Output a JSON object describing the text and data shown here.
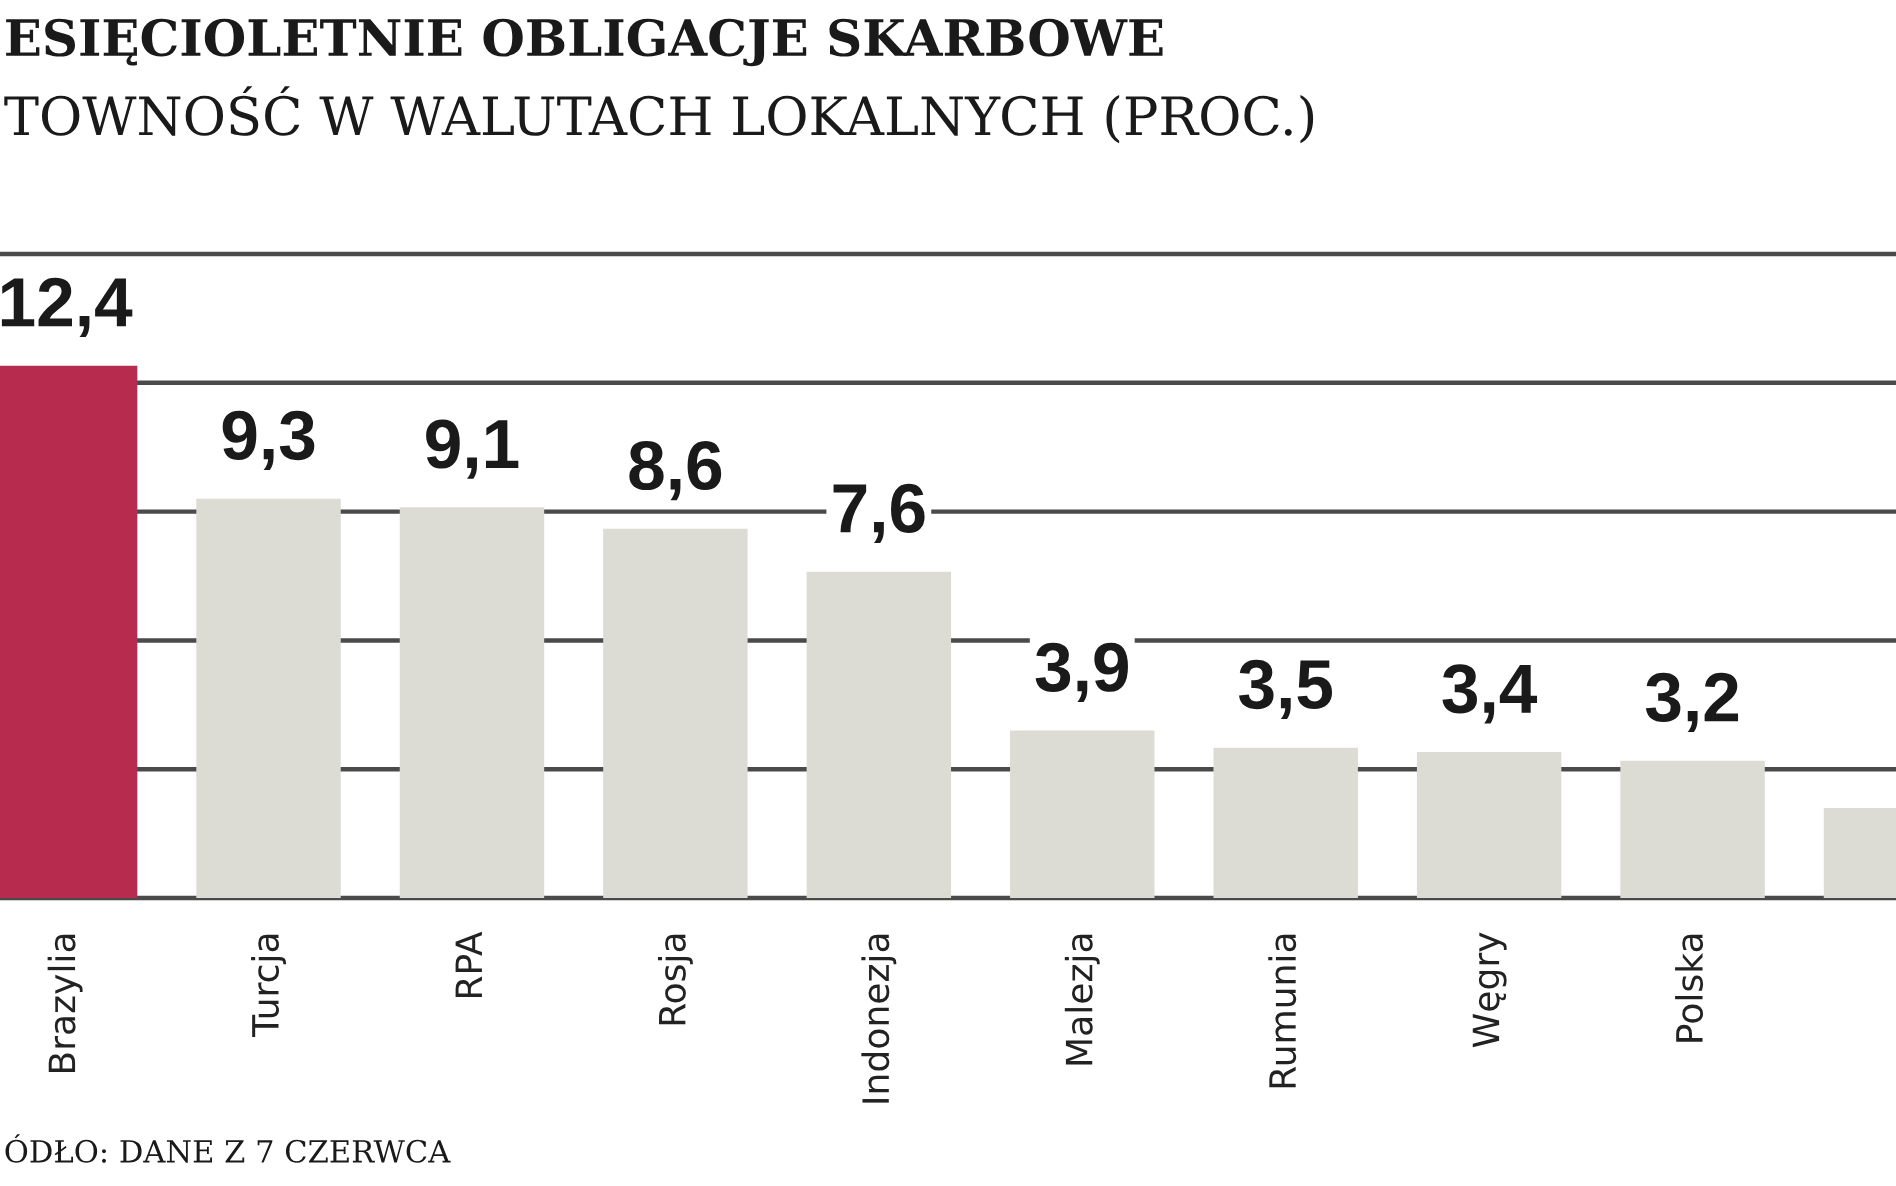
{
  "chart_data": {
    "type": "bar",
    "title": "ESIĘCIOLETNIE OBLIGACJE SKARBOWE",
    "subtitle": "TOWNOŚĆ W WALUTACH LOKALNYCH (PROC.)",
    "categories": [
      "Brazylia",
      "Turcja",
      "RPA",
      "Rosja",
      "Indonezja",
      "Malezja",
      "Rumunia",
      "Węgry",
      "Polska",
      null
    ],
    "values": [
      12.4,
      9.3,
      9.1,
      8.6,
      7.6,
      3.9,
      3.5,
      3.4,
      3.2,
      2.1
    ],
    "colors": [
      "#b72c4e",
      "#dcdcd5",
      "#dcdcd5",
      "#dcdcd5",
      "#dcdcd5",
      "#dcdcd5",
      "#dcdcd5",
      "#dcdcd5",
      "#dcdcd5",
      "#dcdcd5"
    ],
    "value_labels": [
      "12,4",
      "9,3",
      "9,1",
      "8,6",
      "7,6",
      "3,9",
      "3,5",
      "3,4",
      "3,2",
      null
    ],
    "ylim": [
      0,
      15
    ],
    "yticks": [
      {
        "value": 0,
        "label": null
      },
      {
        "value": 3,
        "label": null
      },
      {
        "value": 6,
        "label": null
      },
      {
        "value": 9,
        "label": null
      },
      {
        "value": 12,
        "label": null
      },
      {
        "value": 15,
        "label": null
      }
    ],
    "grid": "y",
    "tick_labels": "x",
    "annotations": [
      "ÓDŁO: DANE Z 7 CZERWCA"
    ]
  }
}
